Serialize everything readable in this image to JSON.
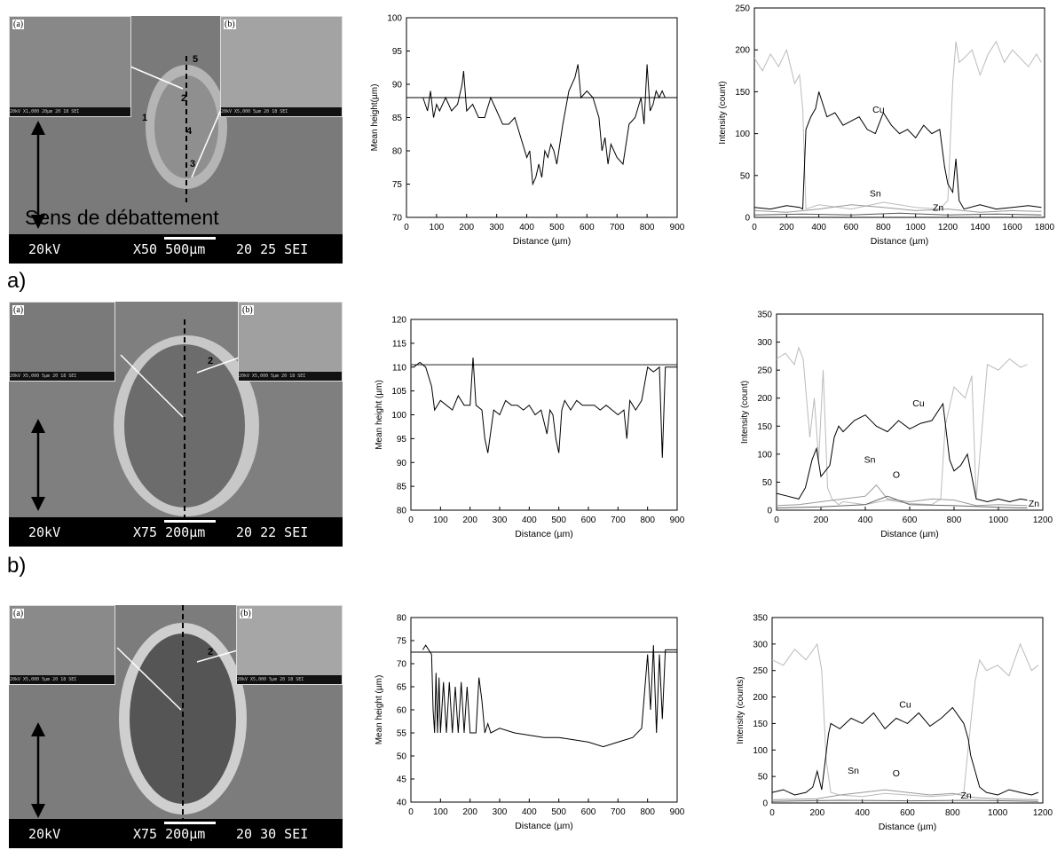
{
  "rows": [
    {
      "label": "a)",
      "sem": {
        "inset_a": "(a)",
        "inset_b": "(b)",
        "kv": "20kV",
        "mag": "X50  500µm",
        "id": "20 25 SEI",
        "inset_a_strip": "20kV  X1,000  20µm     20 18 SEI",
        "inset_b_strip": "20kV  X5,000  5µm      20 18 SEI",
        "points": [
          "1",
          "2",
          "3",
          "4",
          "5"
        ],
        "direction_text": "Sens de débattement"
      }
    },
    {
      "label": "b)",
      "sem": {
        "inset_a": "(a)",
        "inset_b": "(b)",
        "kv": "20kV",
        "mag": "X75  200µm",
        "id": "20 22 SEI",
        "inset_a_strip": "20kV  X5,000  5µm      20 18 SEI",
        "inset_b_strip": "20kV  X5,000  5µm      20 18 SEI",
        "points": [
          "2"
        ]
      }
    },
    {
      "label": "",
      "sem": {
        "inset_a": "(a)",
        "inset_b": "(b)",
        "kv": "20kV",
        "mag": "X75  200µm",
        "id": "20 30 SEI",
        "inset_a_strip": "20kV  X5,000  5µm      20 18 SEI",
        "inset_b_strip": "20kV  X5,000  5µm      20 18 SEI",
        "points": [
          "2"
        ]
      }
    }
  ],
  "chart_data": [
    {
      "type": "line",
      "xlabel": "Distance (µm)",
      "ylabel": "Mean height(µm)",
      "xlim": [
        0,
        900
      ],
      "ylim": [
        70,
        100
      ],
      "xticks": [
        0,
        100,
        200,
        300,
        400,
        500,
        600,
        700,
        800,
        900
      ],
      "yticks": [
        70,
        75,
        80,
        85,
        90,
        95,
        100
      ],
      "hline": 88,
      "series": [
        {
          "color": "#000000",
          "x": [
            55,
            70,
            80,
            90,
            100,
            110,
            130,
            150,
            170,
            185,
            190,
            200,
            220,
            240,
            260,
            280,
            300,
            320,
            340,
            360,
            380,
            400,
            410,
            420,
            430,
            440,
            450,
            460,
            470,
            480,
            490,
            500,
            520,
            540,
            560,
            570,
            580,
            600,
            620,
            640,
            650,
            660,
            670,
            680,
            690,
            700,
            720,
            740,
            760,
            780,
            790,
            800,
            810,
            820,
            830,
            840,
            850,
            860,
            880,
            900
          ],
          "y": [
            88,
            86,
            89,
            85,
            87,
            86,
            88,
            86,
            87,
            90,
            92,
            86,
            87,
            85,
            85,
            88,
            86,
            84,
            84,
            85,
            82,
            79,
            80,
            75,
            76,
            78,
            76,
            80,
            79,
            81,
            80,
            78,
            84,
            89,
            91,
            93,
            88,
            89,
            88,
            85,
            80,
            82,
            78,
            81,
            80,
            79,
            78,
            84,
            85,
            88,
            84,
            93,
            86,
            87,
            89,
            88,
            89,
            88,
            88,
            88
          ]
        }
      ],
      "text_labels": []
    },
    {
      "type": "line",
      "xlabel": "Distance (µm)",
      "ylabel": "Intensity (count)",
      "xlim": [
        0,
        1800
      ],
      "ylim": [
        0,
        250
      ],
      "xticks": [
        0,
        200,
        400,
        600,
        800,
        1000,
        1200,
        1400,
        1600,
        1800
      ],
      "yticks": [
        0,
        50,
        100,
        150,
        200,
        250
      ],
      "series": [
        {
          "color": "#bbbbbb",
          "x": [
            0,
            50,
            100,
            150,
            200,
            250,
            280,
            300,
            320,
            400,
            600,
            800,
            1000,
            1150,
            1200,
            1230,
            1250,
            1270,
            1300,
            1350,
            1400,
            1450,
            1500,
            1550,
            1600,
            1650,
            1700,
            1750,
            1780
          ],
          "y": [
            190,
            175,
            195,
            180,
            200,
            160,
            170,
            130,
            10,
            15,
            10,
            18,
            12,
            10,
            20,
            160,
            210,
            185,
            190,
            200,
            170,
            195,
            210,
            185,
            200,
            190,
            180,
            195,
            185
          ]
        },
        {
          "color": "#000000",
          "x": [
            0,
            100,
            200,
            280,
            300,
            320,
            350,
            380,
            400,
            450,
            500,
            550,
            600,
            650,
            700,
            750,
            800,
            850,
            900,
            950,
            1000,
            1050,
            1100,
            1150,
            1180,
            1200,
            1230,
            1250,
            1270,
            1300,
            1400,
            1500,
            1600,
            1700,
            1780
          ],
          "y": [
            12,
            10,
            14,
            12,
            10,
            105,
            120,
            130,
            150,
            120,
            125,
            110,
            115,
            120,
            105,
            100,
            125,
            110,
            100,
            105,
            95,
            110,
            100,
            105,
            60,
            40,
            30,
            70,
            20,
            10,
            15,
            10,
            12,
            14,
            12
          ]
        },
        {
          "color": "#999999",
          "x": [
            0,
            200,
            400,
            600,
            800,
            1000,
            1200,
            1400,
            1600,
            1780
          ],
          "y": [
            8,
            6,
            10,
            15,
            12,
            8,
            10,
            6,
            8,
            7
          ]
        },
        {
          "color": "#555555",
          "x": [
            0,
            300,
            600,
            900,
            1200,
            1500,
            1780
          ],
          "y": [
            3,
            4,
            3,
            5,
            3,
            4,
            3
          ]
        }
      ],
      "text_labels": [
        {
          "text": "Cu",
          "x": 770,
          "y": 125
        },
        {
          "text": "Sn",
          "x": 750,
          "y": 25
        },
        {
          "text": "Zn",
          "x": 1140,
          "y": 8
        }
      ]
    },
    {
      "type": "line",
      "xlabel": "Distance (µm)",
      "ylabel": "Mean height (µm)",
      "xlim": [
        0,
        900
      ],
      "ylim": [
        80,
        120
      ],
      "xticks": [
        0,
        100,
        200,
        300,
        400,
        500,
        600,
        700,
        800,
        900
      ],
      "yticks": [
        80,
        85,
        90,
        95,
        100,
        105,
        110,
        115,
        120
      ],
      "hline": 110.5,
      "series": [
        {
          "color": "#000000",
          "x": [
            10,
            30,
            50,
            70,
            80,
            100,
            120,
            140,
            160,
            180,
            200,
            210,
            220,
            240,
            250,
            260,
            280,
            300,
            320,
            340,
            360,
            380,
            400,
            420,
            440,
            460,
            470,
            480,
            490,
            500,
            510,
            520,
            540,
            560,
            580,
            600,
            620,
            640,
            660,
            680,
            700,
            720,
            730,
            740,
            750,
            760,
            780,
            800,
            820,
            840,
            850,
            860,
            880,
            900
          ],
          "y": [
            110,
            111,
            110,
            106,
            101,
            103,
            102,
            101,
            104,
            102,
            102,
            112,
            102,
            101,
            95,
            92,
            101,
            100,
            103,
            102,
            102,
            101,
            102,
            100,
            101,
            96,
            101,
            100,
            95,
            92,
            101,
            103,
            101,
            103,
            102,
            102,
            102,
            101,
            102,
            101,
            100,
            101,
            95,
            103,
            102,
            101,
            103,
            110,
            109,
            110,
            91,
            110,
            110,
            110
          ]
        }
      ],
      "text_labels": []
    },
    {
      "type": "line",
      "xlabel": "Distance (µm)",
      "ylabel": "Intensity (count)",
      "xlim": [
        0,
        1200
      ],
      "ylim": [
        0,
        350
      ],
      "xticks": [
        0,
        200,
        400,
        600,
        800,
        1000,
        1200
      ],
      "yticks": [
        0,
        50,
        100,
        150,
        200,
        250,
        300,
        350
      ],
      "series": [
        {
          "color": "#bbbbbb",
          "x": [
            0,
            40,
            80,
            100,
            120,
            150,
            170,
            190,
            210,
            230,
            250,
            280,
            300,
            400,
            500,
            600,
            700,
            740,
            760,
            800,
            850,
            880,
            900,
            950,
            1000,
            1050,
            1100,
            1130
          ],
          "y": [
            270,
            280,
            260,
            290,
            270,
            130,
            200,
            90,
            250,
            40,
            20,
            10,
            15,
            10,
            18,
            12,
            10,
            20,
            150,
            220,
            200,
            240,
            20,
            260,
            250,
            270,
            255,
            260
          ]
        },
        {
          "color": "#000000",
          "x": [
            0,
            50,
            100,
            130,
            160,
            180,
            200,
            240,
            260,
            280,
            300,
            350,
            400,
            450,
            500,
            550,
            600,
            650,
            700,
            750,
            780,
            800,
            830,
            860,
            880,
            900,
            950,
            1000,
            1050,
            1100,
            1130
          ],
          "y": [
            30,
            25,
            20,
            40,
            90,
            110,
            60,
            80,
            130,
            150,
            140,
            160,
            170,
            150,
            140,
            160,
            145,
            155,
            160,
            190,
            90,
            70,
            80,
            100,
            60,
            20,
            15,
            20,
            15,
            20,
            18
          ]
        },
        {
          "color": "#999999",
          "x": [
            0,
            100,
            200,
            300,
            400,
            450,
            500,
            600,
            700,
            800,
            900,
            1000,
            1130
          ],
          "y": [
            8,
            10,
            15,
            20,
            25,
            45,
            20,
            15,
            20,
            18,
            8,
            10,
            8
          ]
        },
        {
          "color": "#666666",
          "x": [
            0,
            200,
            400,
            500,
            600,
            800,
            1000,
            1130
          ],
          "y": [
            4,
            6,
            10,
            25,
            10,
            8,
            5,
            4
          ]
        }
      ],
      "text_labels": [
        {
          "text": "Cu",
          "x": 640,
          "y": 185
        },
        {
          "text": "Sn",
          "x": 420,
          "y": 85
        },
        {
          "text": "O",
          "x": 540,
          "y": 58
        },
        {
          "text": "Zn",
          "x": 1160,
          "y": 6
        }
      ]
    },
    {
      "type": "line",
      "xlabel": "Distance (µm)",
      "ylabel": "Mean height (µm)",
      "xlim": [
        0,
        900
      ],
      "ylim": [
        40,
        80
      ],
      "xticks": [
        0,
        100,
        200,
        300,
        400,
        500,
        600,
        700,
        800,
        900
      ],
      "yticks": [
        40,
        45,
        50,
        55,
        60,
        65,
        70,
        75,
        80
      ],
      "hline": 72.5,
      "series": [
        {
          "color": "#000000",
          "x": [
            40,
            50,
            60,
            70,
            75,
            80,
            85,
            90,
            95,
            100,
            110,
            120,
            130,
            140,
            150,
            160,
            170,
            180,
            190,
            200,
            220,
            230,
            240,
            250,
            260,
            270,
            300,
            350,
            400,
            450,
            500,
            550,
            600,
            650,
            700,
            750,
            780,
            800,
            810,
            820,
            830,
            840,
            850,
            860,
            880,
            900
          ],
          "y": [
            73,
            74,
            73,
            72,
            60,
            55,
            68,
            55,
            67,
            55,
            66,
            55,
            66,
            55,
            65,
            55,
            66,
            55,
            65,
            55,
            55,
            67,
            62,
            55,
            57,
            55,
            56,
            55,
            54.5,
            54,
            54,
            53.5,
            53,
            52,
            53,
            54,
            56,
            72,
            60,
            74,
            55,
            72,
            58,
            73,
            73,
            73
          ]
        }
      ],
      "text_labels": []
    },
    {
      "type": "line",
      "xlabel": "Distance (µm)",
      "ylabel": "Intensity (counts)",
      "xlim": [
        0,
        1200
      ],
      "ylim": [
        0,
        350
      ],
      "xticks": [
        0,
        200,
        400,
        600,
        800,
        1000,
        1200
      ],
      "yticks": [
        0,
        50,
        100,
        150,
        200,
        250,
        300,
        350
      ],
      "series": [
        {
          "color": "#bbbbbb",
          "x": [
            0,
            50,
            100,
            150,
            200,
            220,
            240,
            260,
            300,
            400,
            500,
            600,
            700,
            800,
            850,
            880,
            900,
            920,
            950,
            1000,
            1050,
            1100,
            1150,
            1180
          ],
          "y": [
            270,
            260,
            290,
            270,
            300,
            250,
            80,
            20,
            15,
            12,
            18,
            15,
            12,
            15,
            20,
            150,
            230,
            270,
            250,
            260,
            240,
            300,
            250,
            260
          ]
        },
        {
          "color": "#000000",
          "x": [
            0,
            50,
            100,
            150,
            180,
            200,
            220,
            250,
            260,
            300,
            350,
            400,
            450,
            500,
            550,
            600,
            650,
            700,
            750,
            800,
            850,
            870,
            880,
            900,
            920,
            950,
            1000,
            1050,
            1100,
            1150,
            1180
          ],
          "y": [
            20,
            25,
            15,
            20,
            30,
            60,
            25,
            130,
            150,
            140,
            160,
            150,
            170,
            140,
            160,
            150,
            170,
            145,
            160,
            180,
            150,
            120,
            90,
            60,
            30,
            20,
            15,
            25,
            20,
            15,
            20
          ]
        },
        {
          "color": "#999999",
          "x": [
            0,
            200,
            300,
            400,
            500,
            600,
            700,
            800,
            900,
            1000,
            1180
          ],
          "y": [
            6,
            8,
            15,
            20,
            25,
            20,
            15,
            18,
            10,
            8,
            6
          ]
        },
        {
          "color": "#666666",
          "x": [
            0,
            300,
            600,
            900,
            1180
          ],
          "y": [
            3,
            5,
            4,
            5,
            3
          ]
        }
      ],
      "text_labels": [
        {
          "text": "Cu",
          "x": 590,
          "y": 180
        },
        {
          "text": "Sn",
          "x": 360,
          "y": 55
        },
        {
          "text": "O",
          "x": 550,
          "y": 50
        },
        {
          "text": "Zn",
          "x": 860,
          "y": 8
        }
      ]
    }
  ]
}
